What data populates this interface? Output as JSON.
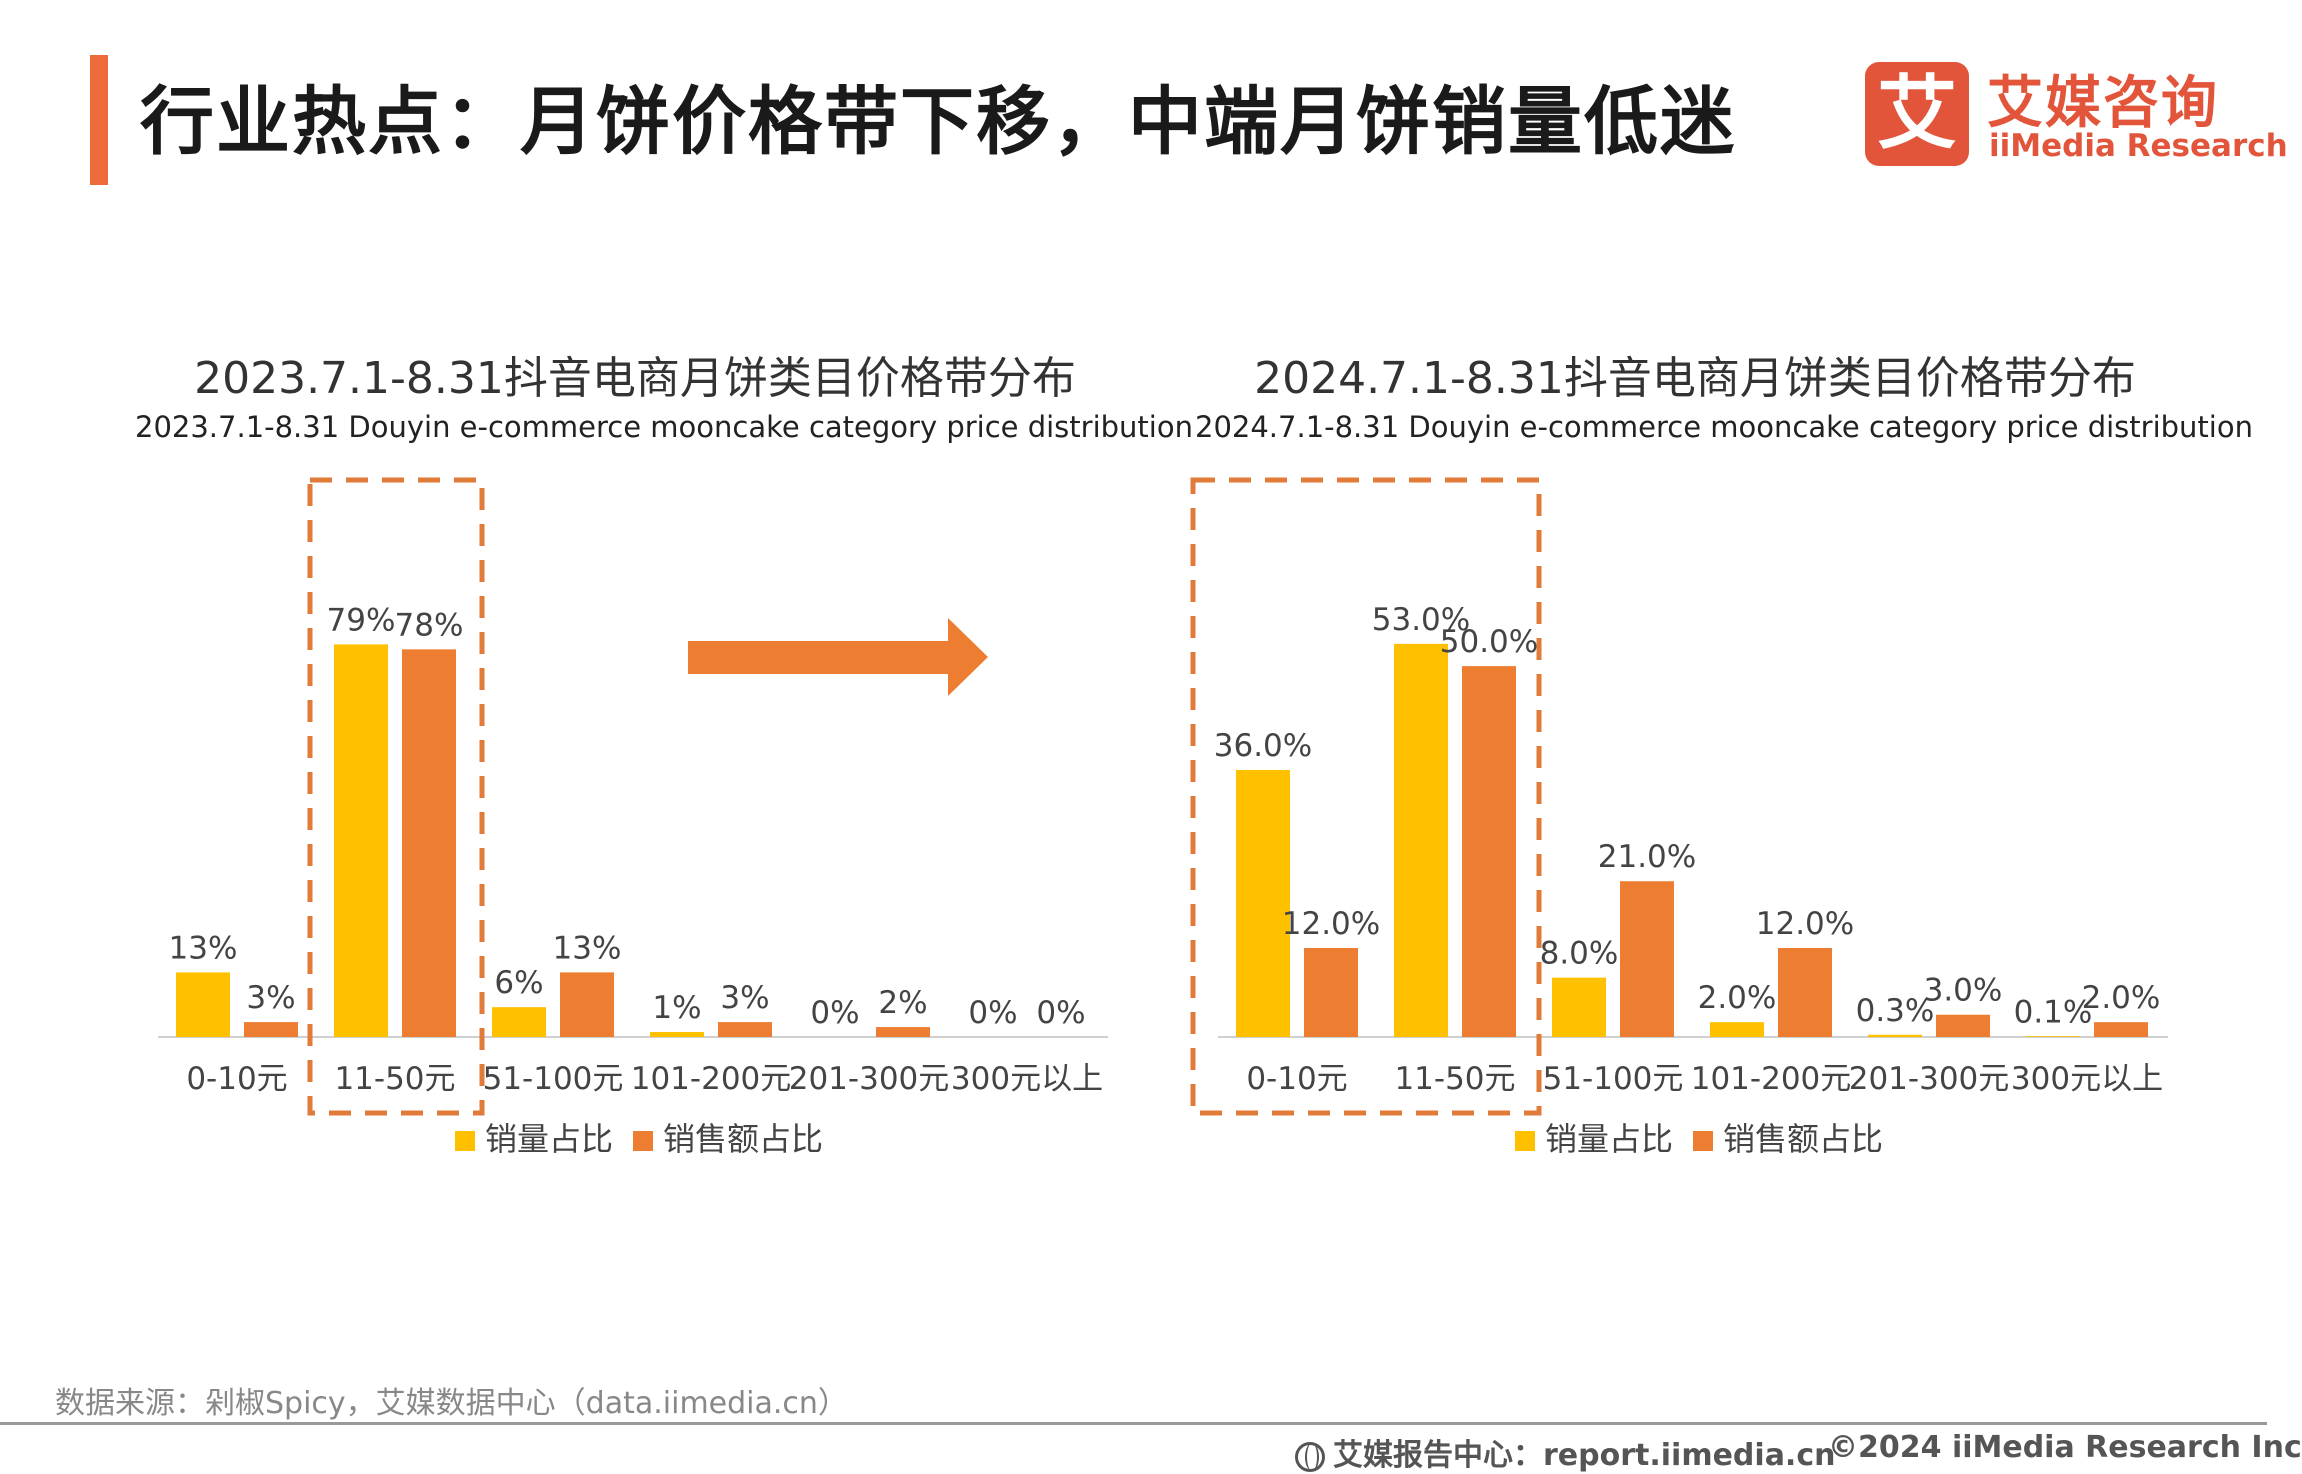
{
  "header": {
    "title": "行业热点：月饼价格带下移，中端月饼销量低迷",
    "logo_cn": "艾媒咨询",
    "logo_en": "iiMedia Research",
    "logo_mark": "艾"
  },
  "colors": {
    "accent": "#ef6a3a",
    "series_volume": "#ffc000",
    "series_sales": "#ed7d31",
    "highlight_box": "#e07b39"
  },
  "chart_data": [
    {
      "type": "bar",
      "title": "2023.7.1-8.31抖音电商月饼类目价格带分布",
      "subtitle": "2023.7.1-8.31 Douyin e-commerce mooncake category price distribution",
      "categories": [
        "0-10元",
        "11-50元",
        "51-100元",
        "101-200元",
        "201-300元",
        "300元以上"
      ],
      "series": [
        {
          "name": "销量占比",
          "values": [
            13,
            79,
            6,
            1,
            0,
            0
          ],
          "labels": [
            "13%",
            "79%",
            "6%",
            "1%",
            "0%",
            "0%"
          ]
        },
        {
          "name": "销售额占比",
          "values": [
            3,
            78,
            13,
            3,
            2,
            0
          ],
          "labels": [
            "3%",
            "78%",
            "13%",
            "3%",
            "2%",
            "0%"
          ]
        }
      ],
      "ylim": [
        0,
        100
      ],
      "grid": false,
      "legend": "bottom"
    },
    {
      "type": "bar",
      "title": "2024.7.1-8.31抖音电商月饼类目价格带分布",
      "subtitle": "2024.7.1-8.31 Douyin e-commerce mooncake category price distribution",
      "categories": [
        "0-10元",
        "11-50元",
        "51-100元",
        "101-200元",
        "201-300元",
        "300元以上"
      ],
      "series": [
        {
          "name": "销量占比",
          "values": [
            36.0,
            53.0,
            8.0,
            2.0,
            0.3,
            0.1
          ],
          "labels": [
            "36.0%",
            "53.0%",
            "8.0%",
            "2.0%",
            "0.3%",
            "0.1%"
          ]
        },
        {
          "name": "销售额占比",
          "values": [
            12.0,
            50.0,
            21.0,
            12.0,
            3.0,
            2.0
          ],
          "labels": [
            "12.0%",
            "50.0%",
            "21.0%",
            "12.0%",
            "3.0%",
            "2.0%"
          ]
        }
      ],
      "ylim": [
        0,
        67
      ],
      "grid": false,
      "legend": "bottom"
    }
  ],
  "legend": {
    "volume": "销量占比",
    "sales": "销售额占比"
  },
  "footer": {
    "source": "数据来源：剁椒Spicy，艾媒数据中心（data.iimedia.cn）",
    "report_center": "艾媒报告中心：report.iimedia.cn",
    "copyright": "©2024  iiMedia Research  Inc"
  }
}
